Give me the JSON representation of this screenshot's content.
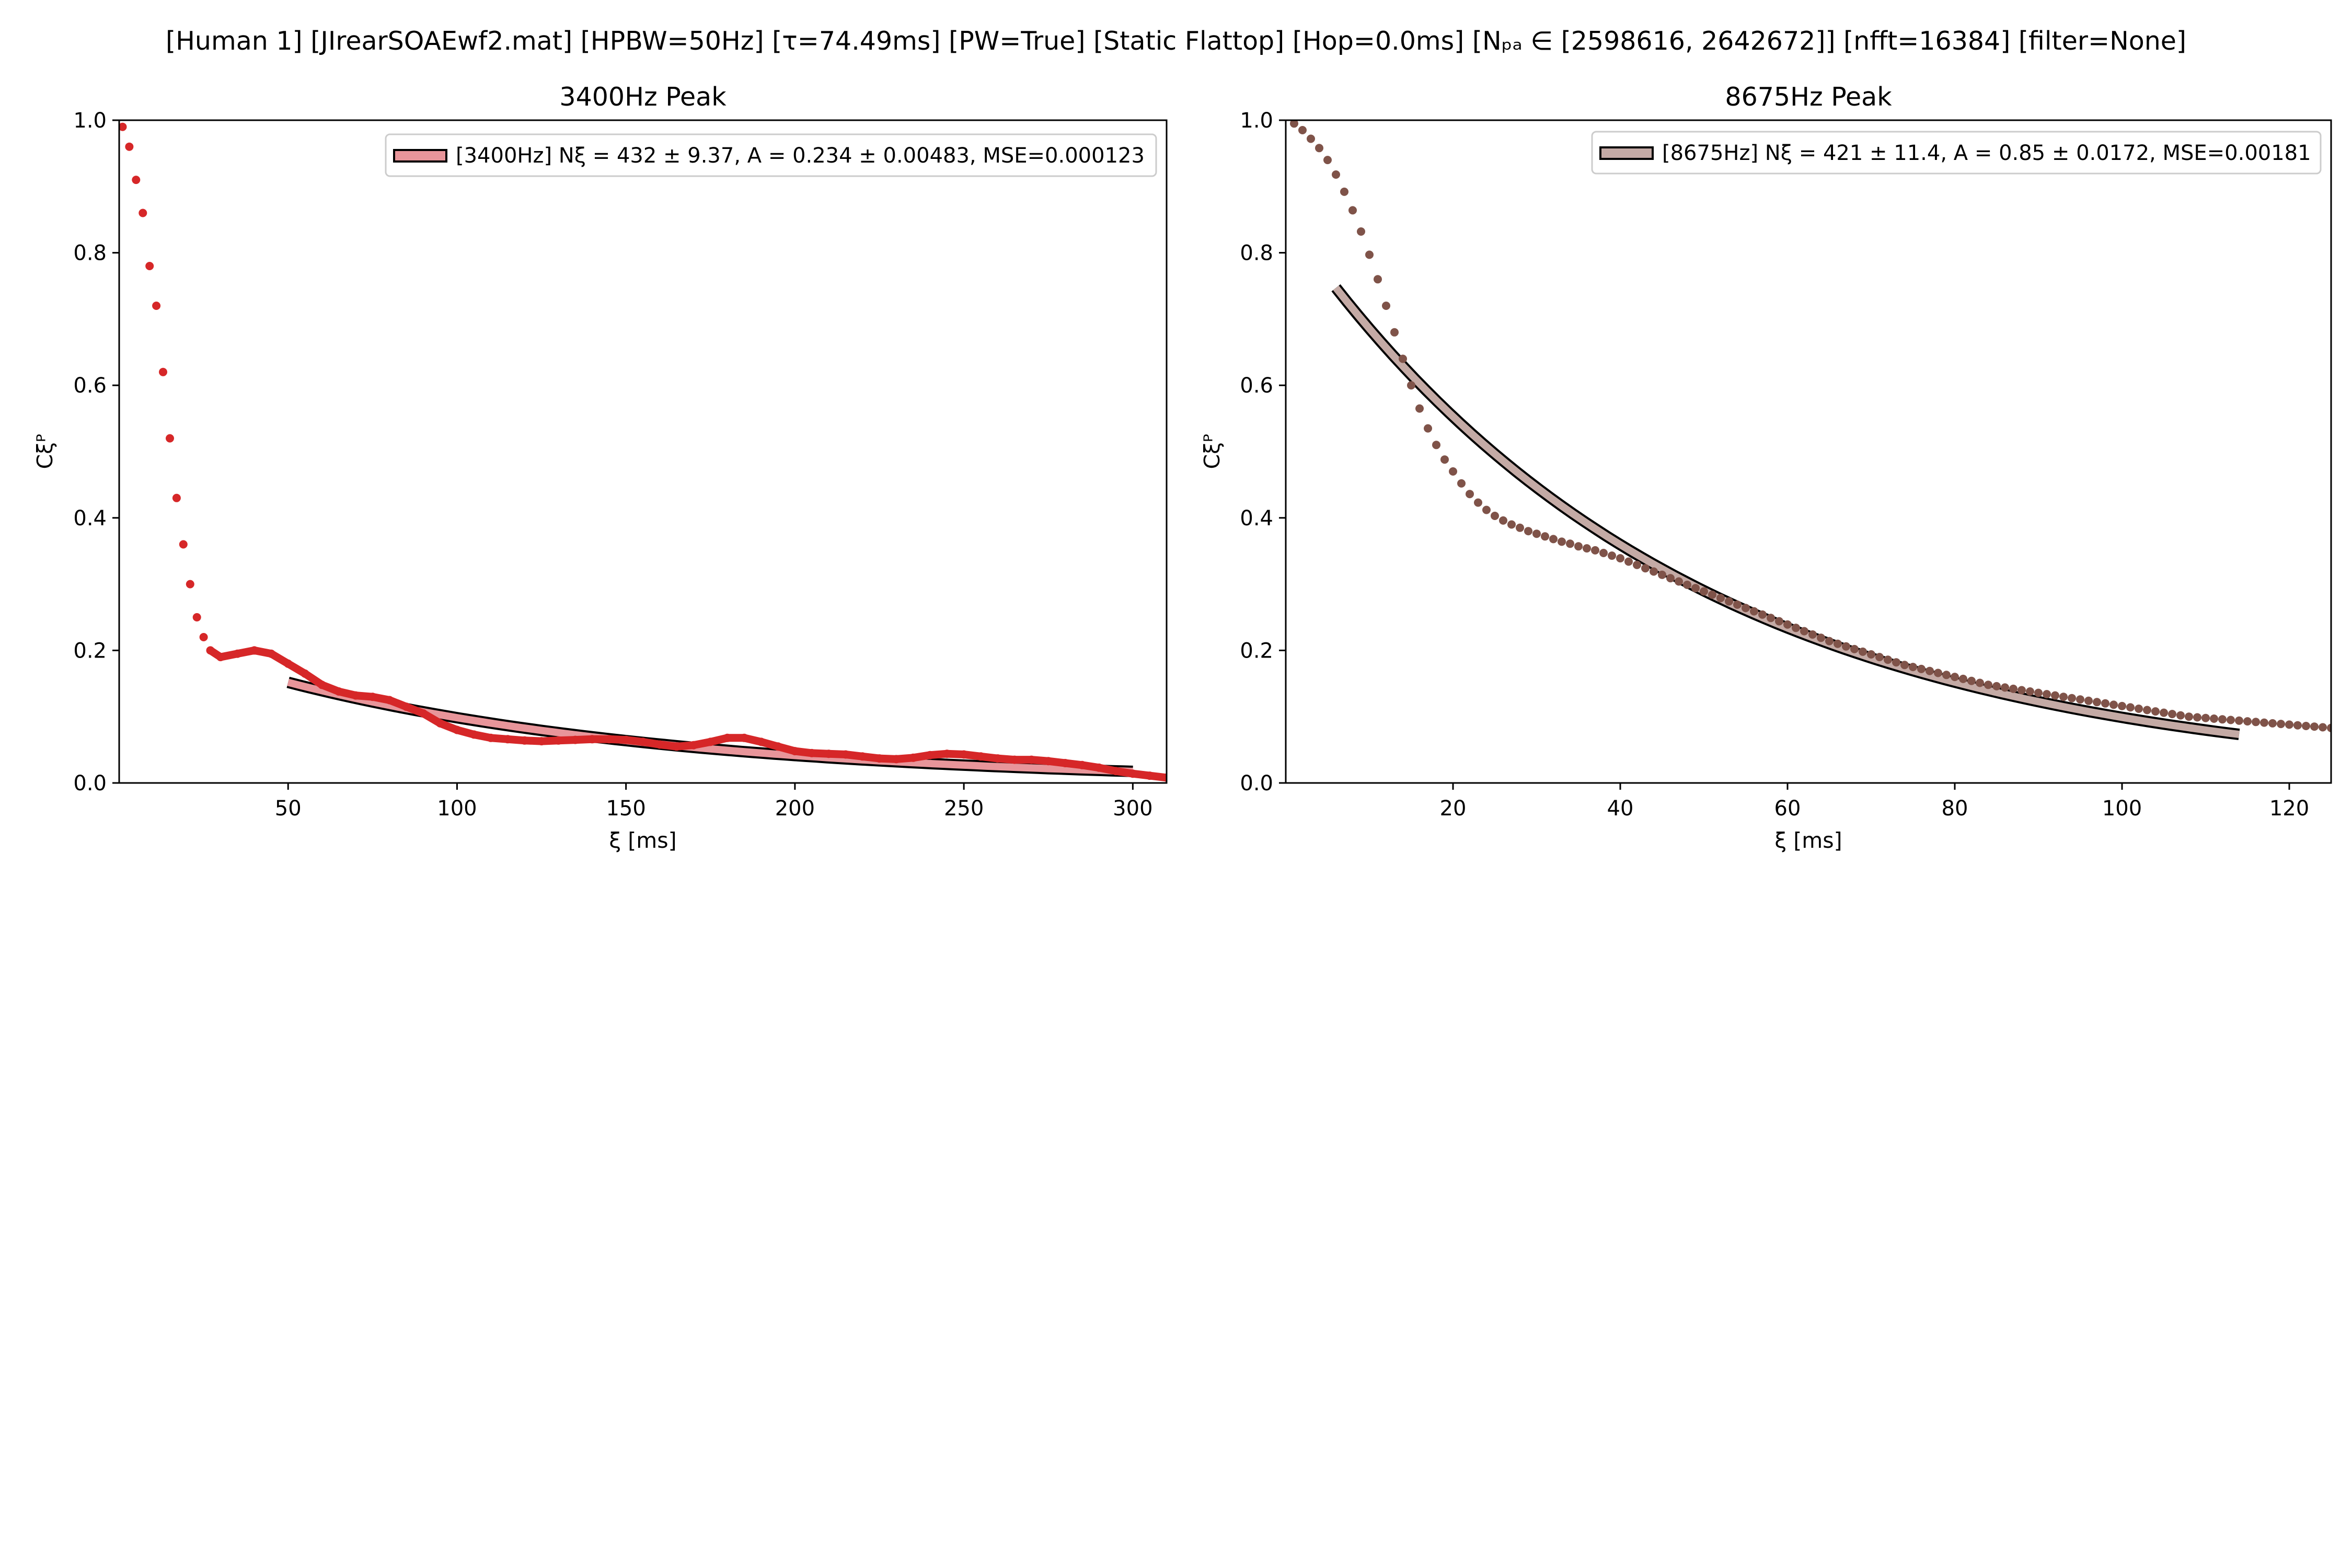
{
  "figure_title": "[Human 1]   [JIrearSOAEwf2.mat]   [HPBW=50Hz]   [τ=74.49ms]   [PW=True]   [Static Flattop]   [Hop=0.0ms]   [Nₚₐ ∈ [2598616, 2642672]]   [nfft=16384]   [filter=None]",
  "chart_data": [
    {
      "type": "scatter",
      "title": "3400Hz Peak",
      "xlabel": "ξ [ms]",
      "ylabel": "Cξᴾ",
      "xlim": [
        0,
        310
      ],
      "ylim": [
        0,
        1.0
      ],
      "xticks": [
        50,
        100,
        150,
        200,
        250,
        300
      ],
      "yticks": [
        0.0,
        0.2,
        0.4,
        0.6,
        0.8,
        1.0
      ],
      "grid": false,
      "legend_position": "top-right",
      "point_color": "#d62728",
      "fit_color": "#e8959a",
      "series": [
        {
          "name": "[3400Hz] Nξ = 432 ± 9.37, A = 0.234 ± 0.00483, MSE=0.000123",
          "kind": "fit",
          "x_range": [
            50,
            300
          ],
          "model": "A*exp(-x/tau)",
          "A": 0.234,
          "N_xi": 432,
          "tau_ms": 115.5
        },
        {
          "kind": "data",
          "x": [
            1,
            3,
            5,
            7,
            9,
            11,
            13,
            15,
            17,
            19,
            21,
            23,
            25,
            27,
            30,
            35,
            40,
            45,
            50,
            55,
            60,
            65,
            70,
            75,
            80,
            85,
            90,
            95,
            100,
            105,
            110,
            115,
            120,
            125,
            130,
            135,
            140,
            145,
            150,
            155,
            160,
            165,
            170,
            175,
            180,
            185,
            190,
            195,
            200,
            205,
            210,
            215,
            220,
            225,
            230,
            235,
            240,
            245,
            250,
            255,
            260,
            265,
            270,
            275,
            280,
            285,
            290,
            295,
            300,
            305,
            310
          ],
          "y": [
            0.99,
            0.96,
            0.91,
            0.86,
            0.78,
            0.72,
            0.62,
            0.52,
            0.43,
            0.36,
            0.3,
            0.25,
            0.22,
            0.2,
            0.19,
            0.195,
            0.2,
            0.195,
            0.18,
            0.165,
            0.148,
            0.138,
            0.132,
            0.13,
            0.125,
            0.115,
            0.105,
            0.09,
            0.08,
            0.073,
            0.068,
            0.066,
            0.064,
            0.063,
            0.064,
            0.065,
            0.066,
            0.066,
            0.065,
            0.062,
            0.058,
            0.055,
            0.057,
            0.062,
            0.068,
            0.068,
            0.062,
            0.055,
            0.048,
            0.045,
            0.044,
            0.043,
            0.04,
            0.037,
            0.036,
            0.038,
            0.042,
            0.044,
            0.043,
            0.04,
            0.037,
            0.035,
            0.035,
            0.033,
            0.03,
            0.027,
            0.023,
            0.018,
            0.014,
            0.011,
            0.008
          ]
        }
      ]
    },
    {
      "type": "scatter",
      "title": "8675Hz Peak",
      "xlabel": "ξ [ms]",
      "ylabel": "Cξᴾ",
      "xlim": [
        0,
        125
      ],
      "ylim": [
        0,
        1.0
      ],
      "xticks": [
        20,
        40,
        60,
        80,
        100,
        120
      ],
      "yticks": [
        0.0,
        0.2,
        0.4,
        0.6,
        0.8,
        1.0
      ],
      "grid": false,
      "legend_position": "top-right",
      "point_color": "#7f5349",
      "fit_color": "#c4aaa5",
      "series": [
        {
          "name": "[8675Hz] Nξ = 421 ± 11.4, A = 0.85 ± 0.0172, MSE=0.00181",
          "kind": "fit",
          "x_range": [
            6,
            114
          ],
          "model": "A*exp(-x/tau)",
          "A": 0.85,
          "N_xi": 421,
          "tau_ms": 46.5
        },
        {
          "kind": "data",
          "x": [
            1,
            2,
            3,
            4,
            5,
            6,
            7,
            8,
            9,
            10,
            11,
            12,
            13,
            14,
            15,
            16,
            17,
            18,
            19,
            20,
            21,
            22,
            23,
            24,
            25,
            26,
            27,
            28,
            29,
            30,
            31,
            32,
            33,
            34,
            35,
            36,
            37,
            38,
            39,
            40,
            41,
            42,
            43,
            44,
            45,
            46,
            47,
            48,
            49,
            50,
            51,
            52,
            53,
            54,
            55,
            56,
            57,
            58,
            59,
            60,
            61,
            62,
            63,
            64,
            65,
            66,
            67,
            68,
            69,
            70,
            71,
            72,
            73,
            74,
            75,
            76,
            77,
            78,
            79,
            80,
            81,
            82,
            83,
            84,
            85,
            86,
            87,
            88,
            89,
            90,
            91,
            92,
            93,
            94,
            95,
            96,
            97,
            98,
            99,
            100,
            101,
            102,
            103,
            104,
            105,
            106,
            107,
            108,
            109,
            110,
            111,
            112,
            113,
            114,
            115,
            116,
            117,
            118,
            119,
            120,
            121,
            122,
            123,
            124,
            125
          ],
          "y": [
            0.995,
            0.985,
            0.972,
            0.958,
            0.94,
            0.918,
            0.892,
            0.864,
            0.832,
            0.797,
            0.76,
            0.72,
            0.68,
            0.64,
            0.6,
            0.565,
            0.535,
            0.51,
            0.488,
            0.47,
            0.452,
            0.436,
            0.423,
            0.412,
            0.403,
            0.396,
            0.39,
            0.385,
            0.38,
            0.376,
            0.372,
            0.368,
            0.364,
            0.361,
            0.357,
            0.354,
            0.351,
            0.347,
            0.343,
            0.339,
            0.334,
            0.329,
            0.324,
            0.319,
            0.314,
            0.309,
            0.304,
            0.299,
            0.294,
            0.289,
            0.284,
            0.279,
            0.274,
            0.269,
            0.264,
            0.259,
            0.254,
            0.249,
            0.244,
            0.239,
            0.234,
            0.229,
            0.224,
            0.219,
            0.214,
            0.21,
            0.206,
            0.202,
            0.198,
            0.194,
            0.19,
            0.186,
            0.182,
            0.178,
            0.175,
            0.172,
            0.169,
            0.166,
            0.163,
            0.16,
            0.157,
            0.154,
            0.151,
            0.148,
            0.146,
            0.144,
            0.142,
            0.14,
            0.138,
            0.136,
            0.134,
            0.132,
            0.13,
            0.128,
            0.126,
            0.124,
            0.122,
            0.12,
            0.118,
            0.116,
            0.114,
            0.112,
            0.11,
            0.108,
            0.106,
            0.104,
            0.102,
            0.1,
            0.099,
            0.098,
            0.097,
            0.096,
            0.095,
            0.094,
            0.093,
            0.092,
            0.091,
            0.09,
            0.089,
            0.088,
            0.087,
            0.086,
            0.085,
            0.084,
            0.083
          ]
        }
      ]
    }
  ]
}
